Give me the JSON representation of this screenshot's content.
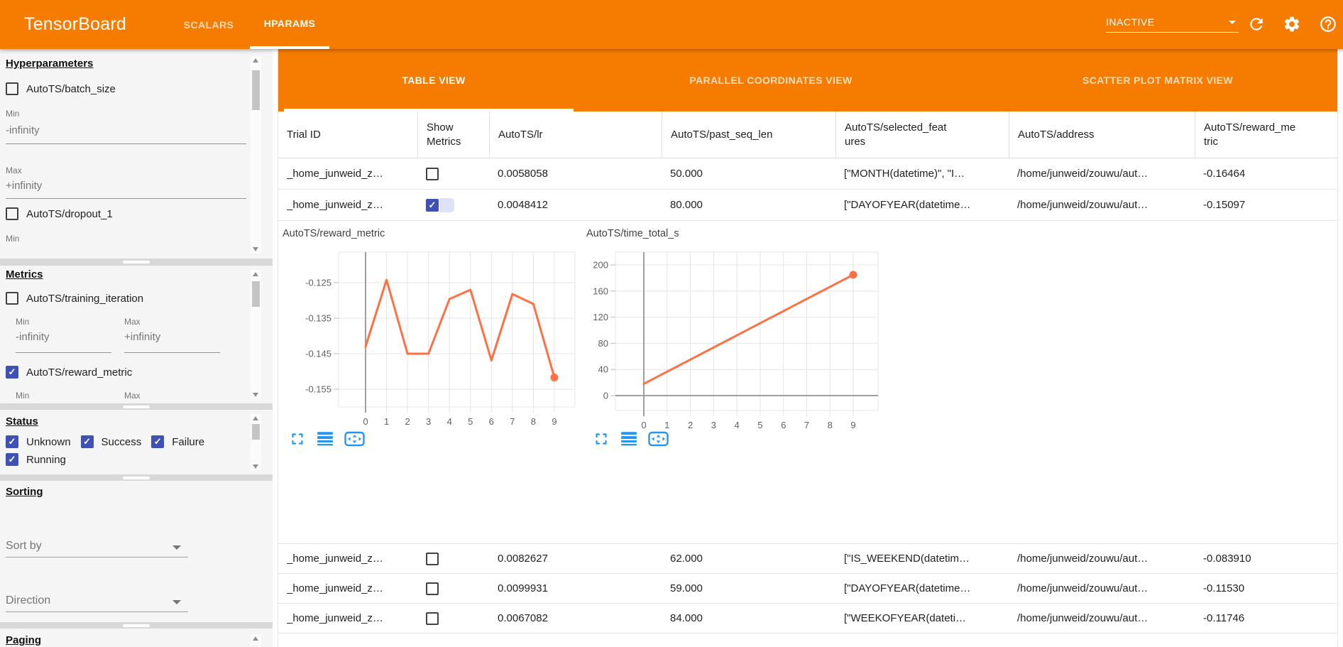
{
  "colors": {
    "appbar_orange": "#f57c00",
    "checkbox_blue": "#3f51b5",
    "chart_line_orange": "#ff7043",
    "chart_icon_blue": "#2196f3"
  },
  "app_bar": {
    "title": "TensorBoard",
    "nav_tabs": [
      {
        "label": "SCALARS",
        "active": false
      },
      {
        "label": "HPARAMS",
        "active": true
      }
    ],
    "run_selector_value": "INACTIVE",
    "icons": {
      "refresh": "refresh-icon",
      "settings": "settings-icon",
      "help": "help-icon"
    }
  },
  "sidebar": {
    "hyperparameters": {
      "heading": "Hyperparameters",
      "batch_size": {
        "label": "AutoTS/batch_size",
        "checked": false,
        "min_label": "Min",
        "min_value": "-infinity",
        "max_label": "Max",
        "max_value": "+infinity"
      },
      "dropout": {
        "label": "AutoTS/dropout_1",
        "checked": false,
        "min_label": "Min"
      }
    },
    "metrics": {
      "heading": "Metrics",
      "training_iteration": {
        "label": "AutoTS/training_iteration",
        "checked": false,
        "min_label": "Min",
        "min_value": "-infinity",
        "max_label": "Max",
        "max_value": "+infinity"
      },
      "reward_metric": {
        "label": "AutoTS/reward_metric",
        "checked": true,
        "min_label": "Min",
        "max_label": "Max"
      }
    },
    "status": {
      "heading": "Status",
      "options": [
        {
          "label": "Unknown",
          "checked": true
        },
        {
          "label": "Success",
          "checked": true
        },
        {
          "label": "Failure",
          "checked": true
        },
        {
          "label": "Running",
          "checked": true
        }
      ]
    },
    "sorting": {
      "heading": "Sorting",
      "sort_by_placeholder": "Sort by",
      "direction_placeholder": "Direction"
    },
    "paging": {
      "heading": "Paging"
    }
  },
  "main": {
    "view_tabs": [
      {
        "label": "TABLE VIEW",
        "active": true
      },
      {
        "label": "PARALLEL COORDINATES VIEW",
        "active": false
      },
      {
        "label": "SCATTER PLOT MATRIX VIEW",
        "active": false
      }
    ],
    "table": {
      "columns": [
        "Trial ID",
        "Show Metrics",
        "AutoTS/lr",
        "AutoTS/past_seq_len",
        "AutoTS/selected_features",
        "AutoTS/address",
        "AutoTS/reward_metric"
      ],
      "rows": [
        {
          "trial_id": "_home_junweid_z…",
          "show_metrics": false,
          "lr": "0.0058058",
          "past_seq_len": "50.000",
          "selected_features": "[\"MONTH(datetime)\", \"I…",
          "address": "/home/junweid/zouwu/aut…",
          "reward_metric": "-0.16464"
        },
        {
          "trial_id": "_home_junweid_z…",
          "show_metrics": true,
          "lr": "0.0048412",
          "past_seq_len": "80.000",
          "selected_features": "[\"DAYOFYEAR(datetime…",
          "address": "/home/junweid/zouwu/aut…",
          "reward_metric": "-0.15097"
        },
        {
          "trial_id": "_home_junweid_z…",
          "show_metrics": false,
          "lr": "0.0082627",
          "past_seq_len": "62.000",
          "selected_features": "[\"IS_WEEKEND(datetim…",
          "address": "/home/junweid/zouwu/aut…",
          "reward_metric": "-0.083910"
        },
        {
          "trial_id": "_home_junweid_z…",
          "show_metrics": false,
          "lr": "0.0099931",
          "past_seq_len": "59.000",
          "selected_features": "[\"DAYOFYEAR(datetime…",
          "address": "/home/junweid/zouwu/aut…",
          "reward_metric": "-0.11530"
        },
        {
          "trial_id": "_home_junweid_z…",
          "show_metrics": false,
          "lr": "0.0067082",
          "past_seq_len": "84.000",
          "selected_features": "[\"WEEKOFYEAR(dateti…",
          "address": "/home/junweid/zouwu/aut…",
          "reward_metric": "-0.11746"
        }
      ]
    }
  },
  "chart_data": [
    {
      "type": "line",
      "title": "AutoTS/reward_metric",
      "x": [
        0,
        1,
        2,
        3,
        4,
        5,
        6,
        7,
        8,
        9
      ],
      "values": [
        -0.143,
        -0.1242,
        -0.145,
        -0.145,
        -0.1296,
        -0.127,
        -0.1469,
        -0.1282,
        -0.131,
        -0.1517
      ],
      "xticks": [
        0,
        1,
        2,
        3,
        4,
        5,
        6,
        7,
        8,
        9
      ],
      "yticks": [
        -0.125,
        -0.135,
        -0.145,
        -0.155
      ],
      "xlabel": "",
      "ylabel": "",
      "ylim": [
        -0.16,
        -0.1164
      ],
      "grid": true,
      "end_marker": true,
      "line_color": "#ff7043"
    },
    {
      "type": "line",
      "title": "AutoTS/time_total_s",
      "x": [
        0,
        1,
        2,
        3,
        4,
        5,
        6,
        7,
        8,
        9
      ],
      "values": [
        18,
        36.6,
        55.1,
        73.7,
        92.2,
        110.8,
        129.3,
        147.9,
        166.4,
        185
      ],
      "xticks": [
        0,
        1,
        2,
        3,
        4,
        5,
        6,
        7,
        8,
        9
      ],
      "yticks": [
        0,
        40,
        80,
        120,
        160,
        200
      ],
      "xlabel": "",
      "ylabel": "",
      "ylim": [
        -22.8,
        219.6
      ],
      "grid": true,
      "end_marker": true,
      "line_color": "#ff7043"
    }
  ],
  "chart_toolbar_icons": [
    "fullscreen-icon",
    "data-list-icon",
    "fit-to-domain-icon"
  ]
}
